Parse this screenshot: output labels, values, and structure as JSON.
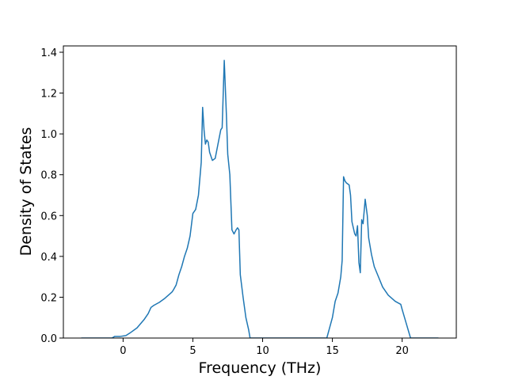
{
  "chart_data": {
    "type": "line",
    "xlabel": "Frequency (THz)",
    "ylabel": "Density of States",
    "color": "#1f77b4",
    "x": [
      -3,
      -0.8,
      -0.6,
      -0.2,
      0.2,
      0.5,
      1,
      1.5,
      1.8,
      2,
      2.2,
      2.6,
      3,
      3.5,
      3.6,
      3.8,
      4,
      4.2,
      4.4,
      4.6,
      4.8,
      5,
      5.2,
      5.4,
      5.6,
      5.7,
      5.8,
      5.9,
      6,
      6.1,
      6.2,
      6.4,
      6.6,
      6.8,
      7,
      7.1,
      7.25,
      7.4,
      7.5,
      7.65,
      7.8,
      7.95,
      8.1,
      8.2,
      8.3,
      8.4,
      8.6,
      8.8,
      9,
      9.1,
      14.6,
      14.8,
      15,
      15.2,
      15.4,
      15.5,
      15.6,
      15.7,
      15.8,
      15.9,
      16,
      16.2,
      16.3,
      16.4,
      16.6,
      16.7,
      16.8,
      16.9,
      17,
      17.1,
      17.2,
      17.35,
      17.5,
      17.6,
      17.8,
      18,
      18.3,
      18.6,
      19,
      19.5,
      19.9,
      20,
      20.3,
      20.6,
      22.6
    ],
    "values": [
      0,
      0,
      0.008,
      0.008,
      0.012,
      0.025,
      0.05,
      0.09,
      0.12,
      0.15,
      0.16,
      0.175,
      0.195,
      0.225,
      0.235,
      0.26,
      0.31,
      0.35,
      0.4,
      0.44,
      0.5,
      0.61,
      0.63,
      0.7,
      0.86,
      1.13,
      1.02,
      0.95,
      0.97,
      0.96,
      0.91,
      0.87,
      0.88,
      0.95,
      1.02,
      1.03,
      1.36,
      1.1,
      0.9,
      0.8,
      0.53,
      0.51,
      0.53,
      0.54,
      0.53,
      0.31,
      0.2,
      0.1,
      0.04,
      0,
      0,
      0.05,
      0.1,
      0.18,
      0.22,
      0.26,
      0.3,
      0.38,
      0.79,
      0.77,
      0.76,
      0.75,
      0.7,
      0.57,
      0.51,
      0.5,
      0.55,
      0.37,
      0.32,
      0.58,
      0.56,
      0.68,
      0.6,
      0.49,
      0.41,
      0.35,
      0.3,
      0.25,
      0.21,
      0.18,
      0.165,
      0.14,
      0.07,
      0,
      0
    ],
    "xlim": [
      -4.28,
      23.88
    ],
    "xticks": [
      0,
      5,
      10,
      15,
      20
    ],
    "ylim": [
      0,
      1.431
    ],
    "yticks": [
      {
        "value": 0,
        "label": "0.0"
      },
      0.2,
      0.4,
      0.6,
      0.8,
      {
        "value": 1,
        "label": "1.0"
      },
      1.2,
      1.4
    ]
  }
}
